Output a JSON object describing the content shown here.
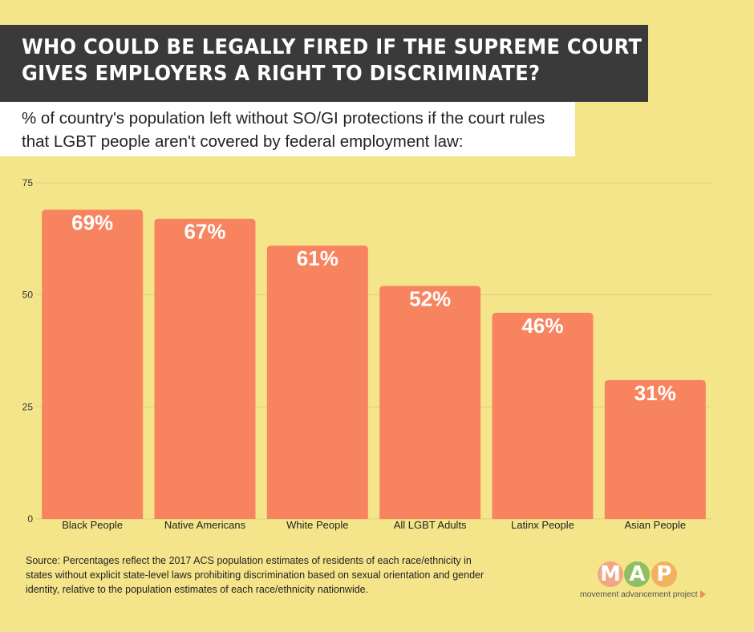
{
  "title": {
    "line1": "WHO COULD BE LEGALLY FIRED IF THE SUPREME COURT",
    "line2": "GIVES EMPLOYERS A RIGHT TO DISCRIMINATE?"
  },
  "subtitle": {
    "line1": "% of country's population left without SO/GI protections if the court rules",
    "line2": "that LGBT people aren't covered by federal employment law:"
  },
  "chart_data": {
    "type": "bar",
    "categories": [
      "Black People",
      "Native Americans",
      "White People",
      "All LGBT Adults",
      "Latinx People",
      "Asian People"
    ],
    "values": [
      69,
      67,
      61,
      52,
      46,
      31
    ],
    "data_labels": [
      "69%",
      "67%",
      "61%",
      "52%",
      "46%",
      "31%"
    ],
    "yticks": [
      "0",
      "25",
      "50",
      "75"
    ],
    "ylim": [
      0,
      75
    ],
    "grid": true,
    "colors": {
      "bar": "#f8845f",
      "grid": "#d9cf7a",
      "axis_text": "#333333",
      "label": "#ffffff"
    }
  },
  "source": {
    "line1": "Source: Percentages reflect the 2017 ACS population estimates of residents of each race/ethnicity in",
    "line2": "states without explicit state-level laws prohibiting discrimination based on sexual orientation and gender",
    "line3": "identity, relative to the population estimates of each race/ethnicity nationwide."
  },
  "logo": {
    "letters": [
      "M",
      "A",
      "P"
    ],
    "tagline": "movement advancement project",
    "colors": [
      "#f4a582",
      "#8fbf63",
      "#f2b25c"
    ]
  }
}
